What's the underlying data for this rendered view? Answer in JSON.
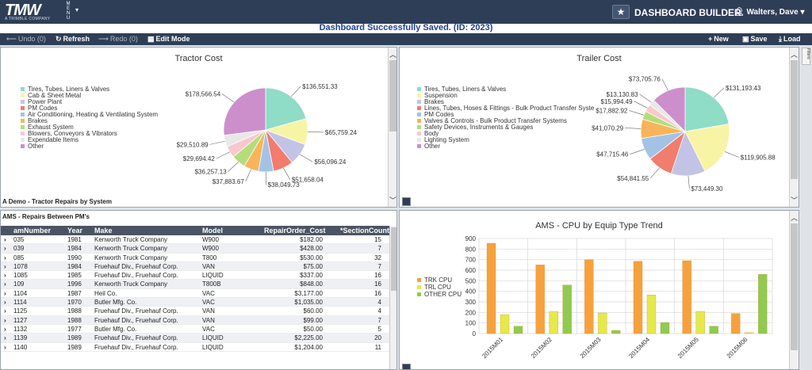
{
  "app": {
    "logo": "TMW",
    "logo_sub": "A TRIMBLE COMPANY",
    "menu": "MENU",
    "title": "DASHBOARD BUILDER",
    "user": "Walters, Dave"
  },
  "status": "Dashboard Successfully Saved. (ID: 2023)",
  "toolbar": {
    "undo": "Undo (0)",
    "refresh": "Refresh",
    "redo": "Redo (0)",
    "edit": "Edit Mode",
    "new": "New",
    "save": "Save",
    "load": "Load"
  },
  "filters_tab": "Filters",
  "colors": {
    "topbar": "#2e3e56",
    "status_text": "#1f3f8e"
  },
  "icons": {
    "undo": "arrow-left-icon",
    "refresh": "refresh-icon",
    "redo": "arrow-right-icon",
    "edit": "grid-icon",
    "new": "plus-icon",
    "save": "save-icon",
    "load": "download-icon",
    "star": "star-icon"
  },
  "tractor": {
    "title": "Tractor Cost",
    "caption": "A Demo - Tractor Repairs by System",
    "legend": [
      "Tires, Tubes, Liners & Valves",
      "Cab & Sheet Metal",
      "Power Plant",
      "PM Codes",
      "Air Conditioning, Heating & Ventilating System",
      "Brakes",
      "Exhaust System",
      "Blowers, Conveyors & Vibrators",
      "Expendable Items",
      "Other"
    ],
    "colors": [
      "#8fdcc7",
      "#f8f4a5",
      "#c3c3e6",
      "#f27c6e",
      "#a3c3e6",
      "#f8b45a",
      "#b5dc7a",
      "#f8c8cc",
      "#e8e8e8",
      "#cc8fcc"
    ],
    "labels": [
      "$136,551.33",
      "$65,759.24",
      "$56,096.24",
      "$51,658.04",
      "$38,049.73",
      "$37,883.67",
      "$36,257.13",
      "$29,694.42",
      "$29,510.89",
      "$178,566.54"
    ]
  },
  "trailer": {
    "title": "Trailer Cost",
    "legend": [
      "Tires, Tubes, Liners & Valves",
      "Suspension",
      "Brakes",
      "Lines, Tubes, Hoses & Fittings - Bulk Product Transfer Syste",
      "PM Codes",
      "Valves & Controls - Bulk Product Transfer Systems",
      "Safety Devices, Instruments & Gauges",
      "Body",
      "Lighting System",
      "Other"
    ],
    "colors": [
      "#8fdcc7",
      "#f8f4a5",
      "#c3c3e6",
      "#f27c6e",
      "#a3c3e6",
      "#f8b45a",
      "#b5dc7a",
      "#f8c8cc",
      "#e8e8e8",
      "#cc8fcc"
    ],
    "labels": [
      "$131,193.43",
      "$119,905.88",
      "$73,449.30",
      "$54,841.55",
      "$47,715.46",
      "$41,070.29",
      "$17,882.92",
      "$15,994.49",
      "$13,130.83",
      "$73,705.76"
    ]
  },
  "table": {
    "title": "AMS - Repairs Between PM's",
    "columns": [
      "amNumber",
      "Year",
      "Make",
      "Model",
      "RepairOrder_Cost",
      "*SectionCount"
    ],
    "rows": [
      [
        "035",
        "1981",
        "Kenworth Truck Company",
        "W900",
        "$182.00",
        "15"
      ],
      [
        "039",
        "1984",
        "Kenworth Truck Company",
        "W900",
        "$428.00",
        "7"
      ],
      [
        "085",
        "1990",
        "Kenworth Truck Company",
        "T800",
        "$530.00",
        "32"
      ],
      [
        "1078",
        "1984",
        "Fruehauf Div., Fruehauf Corp.",
        "VAN",
        "$75.00",
        "7"
      ],
      [
        "1085",
        "1985",
        "Fruehauf Div., Fruehauf Corp.",
        "LIQUID",
        "$337.00",
        "16"
      ],
      [
        "109",
        "1996",
        "Kenworth Truck Company",
        "T800B",
        "$848.00",
        "16"
      ],
      [
        "1104",
        "1987",
        "Heil Co.",
        "VAC",
        "$3,177.00",
        "16"
      ],
      [
        "1114",
        "1970",
        "Butler Mfg. Co.",
        "VAC",
        "$1,035.00",
        "4"
      ],
      [
        "1125",
        "1988",
        "Fruehauf Div., Fruehauf Corp.",
        "VAN",
        "$60.00",
        "4"
      ],
      [
        "1127",
        "1988",
        "Fruehauf Div., Fruehauf Corp.",
        "VAN",
        "$99.00",
        "7"
      ],
      [
        "1132",
        "1977",
        "Butler Mfg. Co.",
        "VAC",
        "$50.00",
        "5"
      ],
      [
        "1139",
        "1989",
        "Fruehauf Div., Fruehauf Corp.",
        "LIQUID",
        "$2,225.00",
        "20"
      ],
      [
        "1140",
        "1989",
        "Fruehauf Div., Fruehauf Corp.",
        "LIQUID",
        "$1,204.00",
        "11"
      ]
    ]
  },
  "chart_data": [
    {
      "type": "pie",
      "title": "Tractor Cost",
      "labels": [
        "Tires, Tubes, Liners & Valves",
        "Cab & Sheet Metal",
        "Power Plant",
        "PM Codes",
        "Air Conditioning, Heating & Ventilating System",
        "Brakes",
        "Exhaust System",
        "Blowers, Conveyors & Vibrators",
        "Expendable Items",
        "Other"
      ],
      "values": [
        136551.33,
        65759.24,
        56096.24,
        51658.04,
        38049.73,
        37883.67,
        36257.13,
        29694.42,
        29510.89,
        178566.54
      ],
      "legend": "left"
    },
    {
      "type": "pie",
      "title": "Trailer Cost",
      "labels": [
        "Tires, Tubes, Liners & Valves",
        "Suspension",
        "Brakes",
        "Lines, Tubes, Hoses & Fittings - Bulk Product Transfer Syste",
        "PM Codes",
        "Valves & Controls - Bulk Product Transfer Systems",
        "Safety Devices, Instruments & Gauges",
        "Body",
        "Lighting System",
        "Other"
      ],
      "values": [
        131193.43,
        119905.88,
        73449.3,
        54841.55,
        47715.46,
        41070.29,
        17882.92,
        15994.49,
        13130.83,
        73705.76
      ],
      "legend": "left"
    },
    {
      "type": "bar",
      "title": "AMS - CPU by Equip Type Trend",
      "categories": [
        "2015M01",
        "2015M02",
        "2015M03",
        "2015M04",
        "2015M05",
        "2015M06"
      ],
      "series": [
        {
          "name": "TRK CPU",
          "color": "#f7a13c",
          "values": [
            855,
            650,
            700,
            685,
            690,
            190
          ]
        },
        {
          "name": "TRL CPU",
          "color": "#e6e94a",
          "values": [
            180,
            210,
            195,
            365,
            210,
            10
          ]
        },
        {
          "name": "OTHER CPU",
          "color": "#8fcb4f",
          "values": [
            70,
            460,
            30,
            105,
            70,
            560
          ]
        }
      ],
      "ylim": [
        0,
        900
      ],
      "yticks": [
        "900",
        "800",
        "700",
        "600",
        "500",
        "400",
        "300",
        "200",
        "100",
        "0"
      ],
      "grid": true,
      "legend": "left"
    }
  ]
}
